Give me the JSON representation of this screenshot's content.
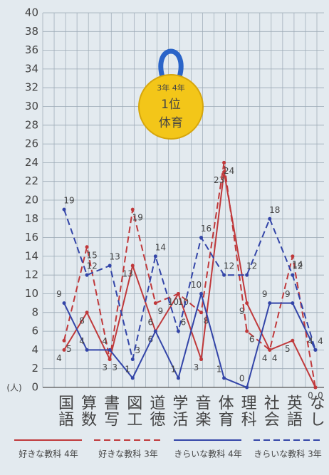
{
  "chart_data": {
    "type": "line",
    "categories": [
      "国語",
      "算数",
      "書写",
      "図工",
      "道徳",
      "学活",
      "音楽",
      "体育",
      "理科",
      "社会",
      "英語",
      "なし"
    ],
    "series": [
      {
        "name": "好きな教科 4年",
        "color": "#c0393b",
        "dash": false,
        "values": [
          4,
          8,
          3,
          13,
          6,
          10,
          3,
          23,
          9,
          4,
          5,
          0
        ]
      },
      {
        "name": "好きな教科 3年",
        "color": "#c0393b",
        "dash": true,
        "values": [
          5,
          15,
          3,
          19,
          9,
          10,
          8,
          24,
          6,
          4,
          14,
          0
        ]
      },
      {
        "name": "きらいな教科 4年",
        "color": "#3345a8",
        "dash": false,
        "values": [
          9,
          4,
          4,
          1,
          6,
          1,
          10,
          1,
          0,
          9,
          9,
          4
        ]
      },
      {
        "name": "きらいな教科 3年",
        "color": "#3345a8",
        "dash": true,
        "values": [
          19,
          12,
          13,
          3,
          14,
          6,
          16,
          12,
          12,
          18,
          12,
          4
        ]
      }
    ],
    "y_label": "(人)",
    "ylim": [
      0,
      40
    ],
    "yticks": [
      0,
      2,
      4,
      6,
      8,
      10,
      12,
      14,
      16,
      18,
      20,
      22,
      24,
      26,
      28,
      30,
      32,
      34,
      36,
      38,
      40
    ],
    "grid": true,
    "annotation": [
      "3年 4年",
      "1位",
      "体育"
    ]
  }
}
